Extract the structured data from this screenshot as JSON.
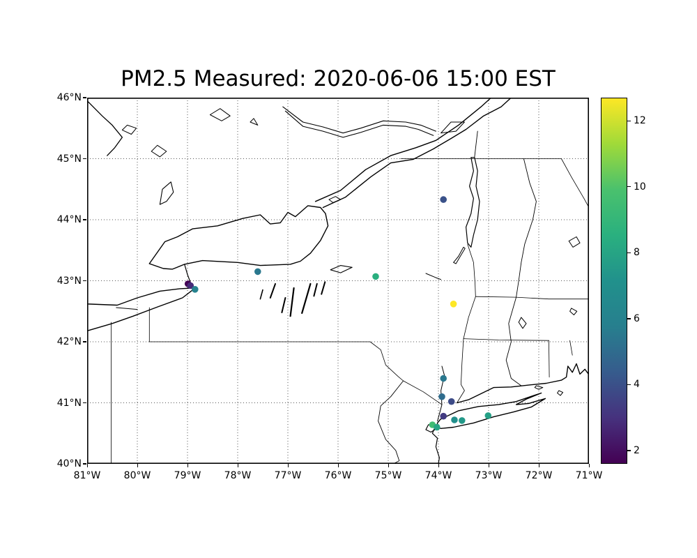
{
  "figure": {
    "background": "#ffffff",
    "title": "PM2.5 Measured: 2020-06-06 15:00 EST"
  },
  "chart_data": {
    "type": "scatter",
    "title": "PM2.5 Measured: 2020-06-06 15:00 EST",
    "subtitle": "",
    "projection": "longitude-latitude map of New York State region with coastlines, lakes and state borders",
    "xlabel": "",
    "ylabel": "",
    "xlim": [
      -81,
      -71
    ],
    "ylim": [
      40,
      46
    ],
    "x_tick_labels": [
      "81°W",
      "80°W",
      "79°W",
      "78°W",
      "77°W",
      "76°W",
      "75°W",
      "74°W",
      "73°W",
      "72°W",
      "71°W"
    ],
    "y_tick_labels": [
      "40°N",
      "41°N",
      "42°N",
      "43°N",
      "44°N",
      "45°N",
      "46°N"
    ],
    "grid": "dotted",
    "legend": "none",
    "colormap": "viridis",
    "color_range": [
      1.6,
      12.7
    ],
    "colorbar_ticks": [
      2,
      4,
      6,
      8,
      10,
      12
    ],
    "points": [
      {
        "lon": -73.9,
        "lat": 44.33,
        "value": 4.0
      },
      {
        "lon": -77.6,
        "lat": 43.15,
        "value": 5.5
      },
      {
        "lon": -78.99,
        "lat": 42.95,
        "value": 1.6
      },
      {
        "lon": -78.94,
        "lat": 42.92,
        "value": 2.8
      },
      {
        "lon": -78.85,
        "lat": 42.86,
        "value": 6.0
      },
      {
        "lon": -75.25,
        "lat": 43.07,
        "value": 8.5
      },
      {
        "lon": -73.7,
        "lat": 42.62,
        "value": 12.7
      },
      {
        "lon": -73.9,
        "lat": 41.4,
        "value": 5.5
      },
      {
        "lon": -73.93,
        "lat": 41.1,
        "value": 5.0
      },
      {
        "lon": -73.74,
        "lat": 41.02,
        "value": 3.8
      },
      {
        "lon": -73.9,
        "lat": 40.78,
        "value": 3.3
      },
      {
        "lon": -73.68,
        "lat": 40.72,
        "value": 7.0
      },
      {
        "lon": -73.53,
        "lat": 40.71,
        "value": 7.5
      },
      {
        "lon": -73.01,
        "lat": 40.79,
        "value": 7.8
      },
      {
        "lon": -74.12,
        "lat": 40.64,
        "value": 9.5
      },
      {
        "lon": -74.03,
        "lat": 40.6,
        "value": 8.0
      }
    ]
  }
}
